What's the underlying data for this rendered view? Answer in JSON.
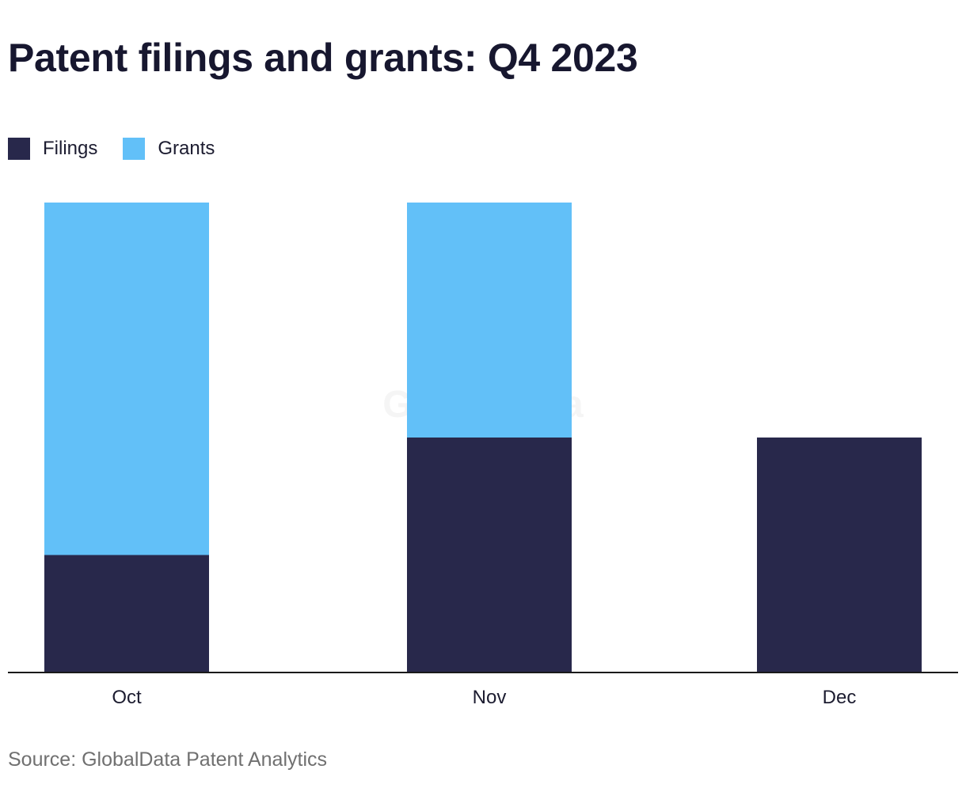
{
  "chart_data": {
    "type": "bar",
    "stacked": true,
    "title": "Patent filings and grants: Q4 2023",
    "categories": [
      "Oct",
      "Nov",
      "Dec"
    ],
    "series": [
      {
        "name": "Filings",
        "values": [
          1,
          2,
          2
        ],
        "color": "#28284b"
      },
      {
        "name": "Grants",
        "values": [
          3,
          2,
          0
        ],
        "color": "#62c0f8"
      }
    ],
    "ylim": [
      0,
      4
    ],
    "grid": false,
    "legend_position": "top-left",
    "xlabel": "",
    "ylabel": ""
  },
  "source": "Source: GlobalData Patent Analytics",
  "watermark": "GlobalData"
}
